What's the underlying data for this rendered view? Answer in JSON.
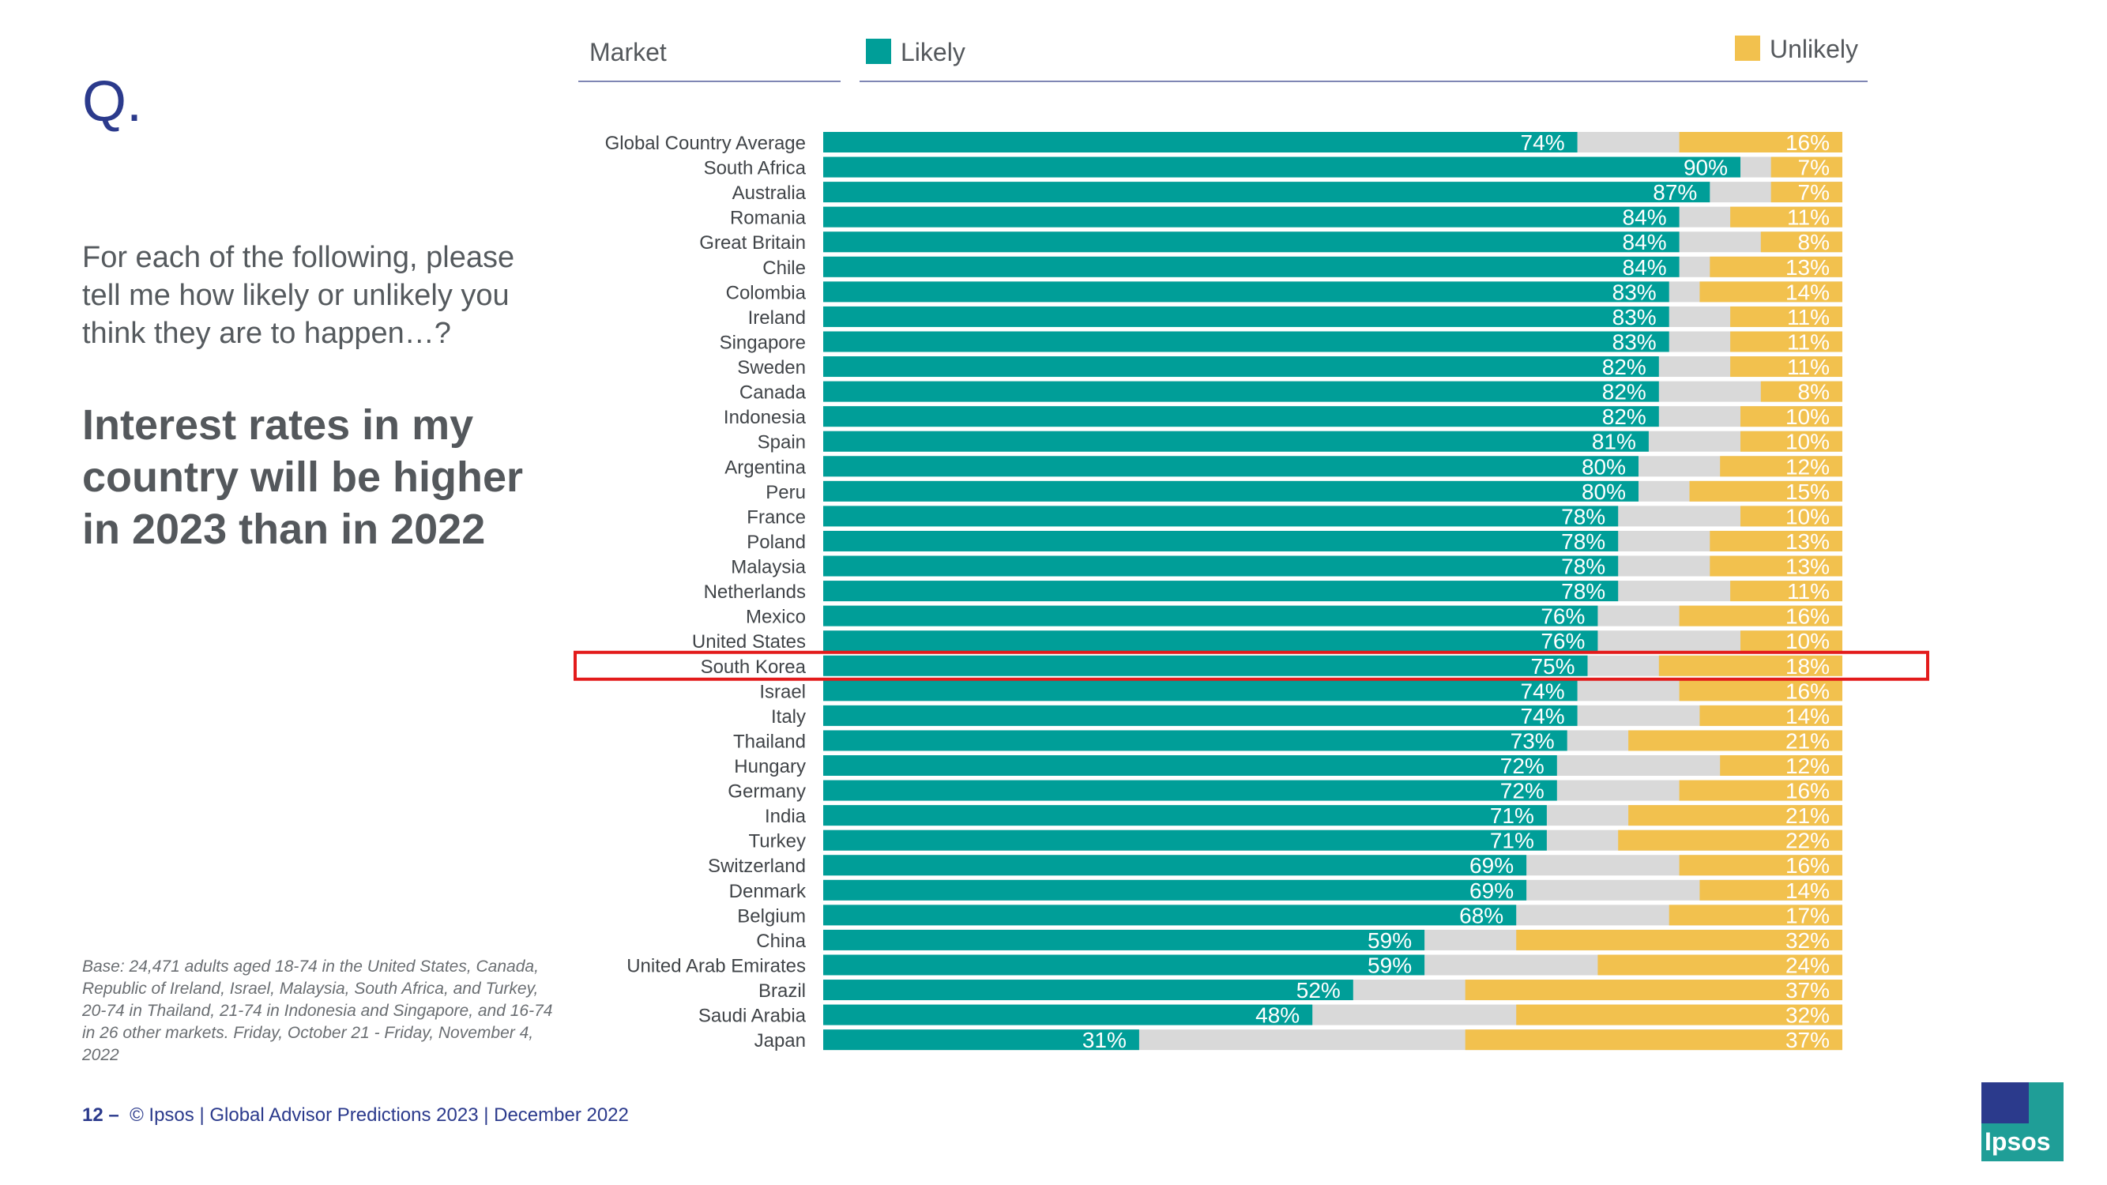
{
  "slide": {
    "q": "Q.",
    "question": "For each of the following, please tell me how likely or unlikely you think they are to happen…?",
    "statement": "Interest rates in my country will be higher in 2023 than in 2022",
    "base": "Base: 24,471 adults aged 18-74 in the United States, Canada, Republic of Ireland, Israel, Malaysia, South Africa, and Turkey, 20-74 in Thailand, 21-74 in Indonesia and Singapore, and 16-74 in 26 other markets. Friday, October 21 -  Friday, November 4, 2022",
    "page_number": "12 –",
    "footer": "© Ipsos | Global Advisor Predictions 2023 | December 2022",
    "logo": "Ipsos"
  },
  "header": {
    "market": "Market",
    "likely": "Likely",
    "unlikely": "Unlikely"
  },
  "colors": {
    "likely": "#009e98",
    "neutral": "#d9d9d9",
    "unlikely": "#f2c14e",
    "highlight": "#e31b1b",
    "brand": "#2b3a8c"
  },
  "chart_data": {
    "type": "bar",
    "orientation": "horizontal-stacked-100",
    "categories": [
      "Global Country Average",
      "South Africa",
      "Australia",
      "Romania",
      "Great Britain",
      "Chile",
      "Colombia",
      "Ireland",
      "Singapore",
      "Sweden",
      "Canada",
      "Indonesia",
      "Spain",
      "Argentina",
      "Peru",
      "France",
      "Poland",
      "Malaysia",
      "Netherlands",
      "Mexico",
      "United States",
      "South Korea",
      "Israel",
      "Italy",
      "Thailand",
      "Hungary",
      "Germany",
      "India",
      "Turkey",
      "Switzerland",
      "Denmark",
      "Belgium",
      "China",
      "United Arab Emirates",
      "Brazil",
      "Saudi Arabia",
      "Japan"
    ],
    "series": [
      {
        "name": "Likely",
        "values": [
          74,
          90,
          87,
          84,
          84,
          84,
          83,
          83,
          83,
          82,
          82,
          82,
          81,
          80,
          80,
          78,
          78,
          78,
          78,
          76,
          76,
          75,
          74,
          74,
          73,
          72,
          72,
          71,
          71,
          69,
          69,
          68,
          59,
          59,
          52,
          48,
          31
        ]
      },
      {
        "name": "Unlikely",
        "values": [
          16,
          7,
          7,
          11,
          8,
          13,
          14,
          11,
          11,
          11,
          8,
          10,
          10,
          12,
          15,
          10,
          13,
          13,
          11,
          16,
          10,
          18,
          16,
          14,
          21,
          12,
          16,
          21,
          22,
          16,
          14,
          17,
          32,
          24,
          37,
          32,
          37
        ]
      }
    ],
    "highlight_category": "South Korea",
    "xlim": [
      0,
      100
    ],
    "value_suffix": "%"
  }
}
